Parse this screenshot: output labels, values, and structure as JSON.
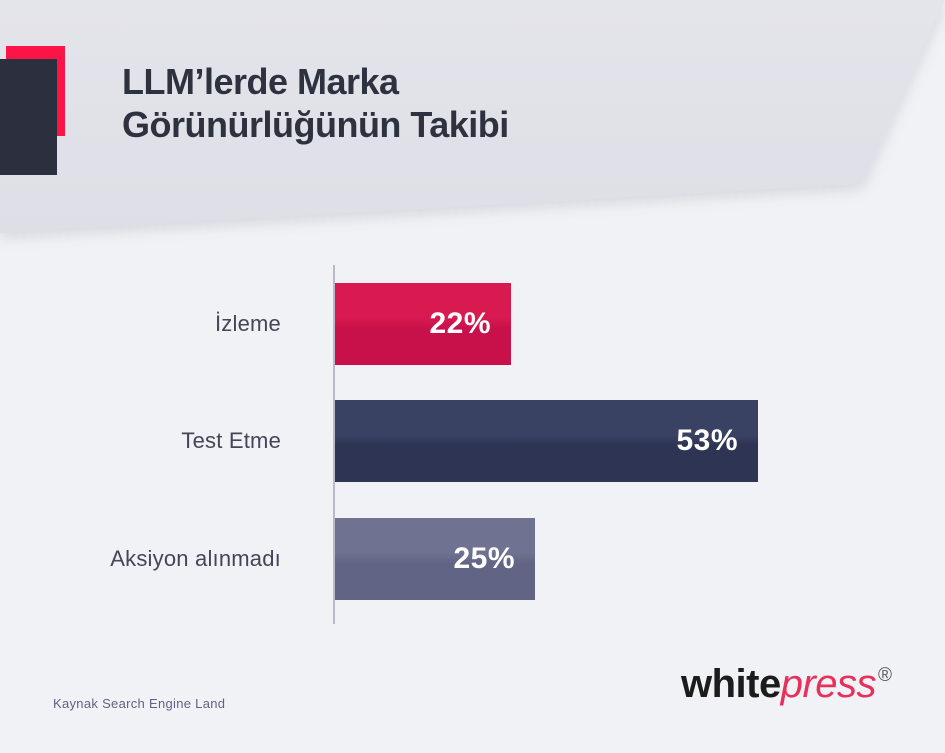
{
  "header": {
    "title": "LLM’lerde Marka Görünürlüğünün Takibi"
  },
  "chart_data": {
    "type": "bar",
    "orientation": "horizontal",
    "title": "LLM’lerde Marka Görünürlüğünün Takibi",
    "categories": [
      "İzleme",
      "Test Etme",
      "Aksiyon alınmadı"
    ],
    "values": [
      22,
      53,
      25
    ],
    "value_labels": [
      "22%",
      "53%",
      "25%"
    ],
    "xlim": [
      0,
      53
    ],
    "grid": "off",
    "legend": "none",
    "bar_colors": [
      {
        "top": "#d81a50",
        "bottom": "#c8114a"
      },
      {
        "top": "#3a4263",
        "bottom": "#2e3453"
      },
      {
        "top": "#6f7391",
        "bottom": "#616484"
      }
    ]
  },
  "footer": {
    "source": "Kaynak Search Engine Land",
    "brand_white": "white",
    "brand_press": "press",
    "brand_reg": "®"
  },
  "colors": {
    "header_band": "#e1e1e8",
    "page_background": "#f1f2f6",
    "title_text": "#2e323f",
    "label_text": "#434657",
    "axis_line": "#b9bac5",
    "logo_red": "#fb1448",
    "logo_navy": "#2b2f3e",
    "brand_black": "#1c1c1c",
    "brand_pink": "#e7305b"
  }
}
